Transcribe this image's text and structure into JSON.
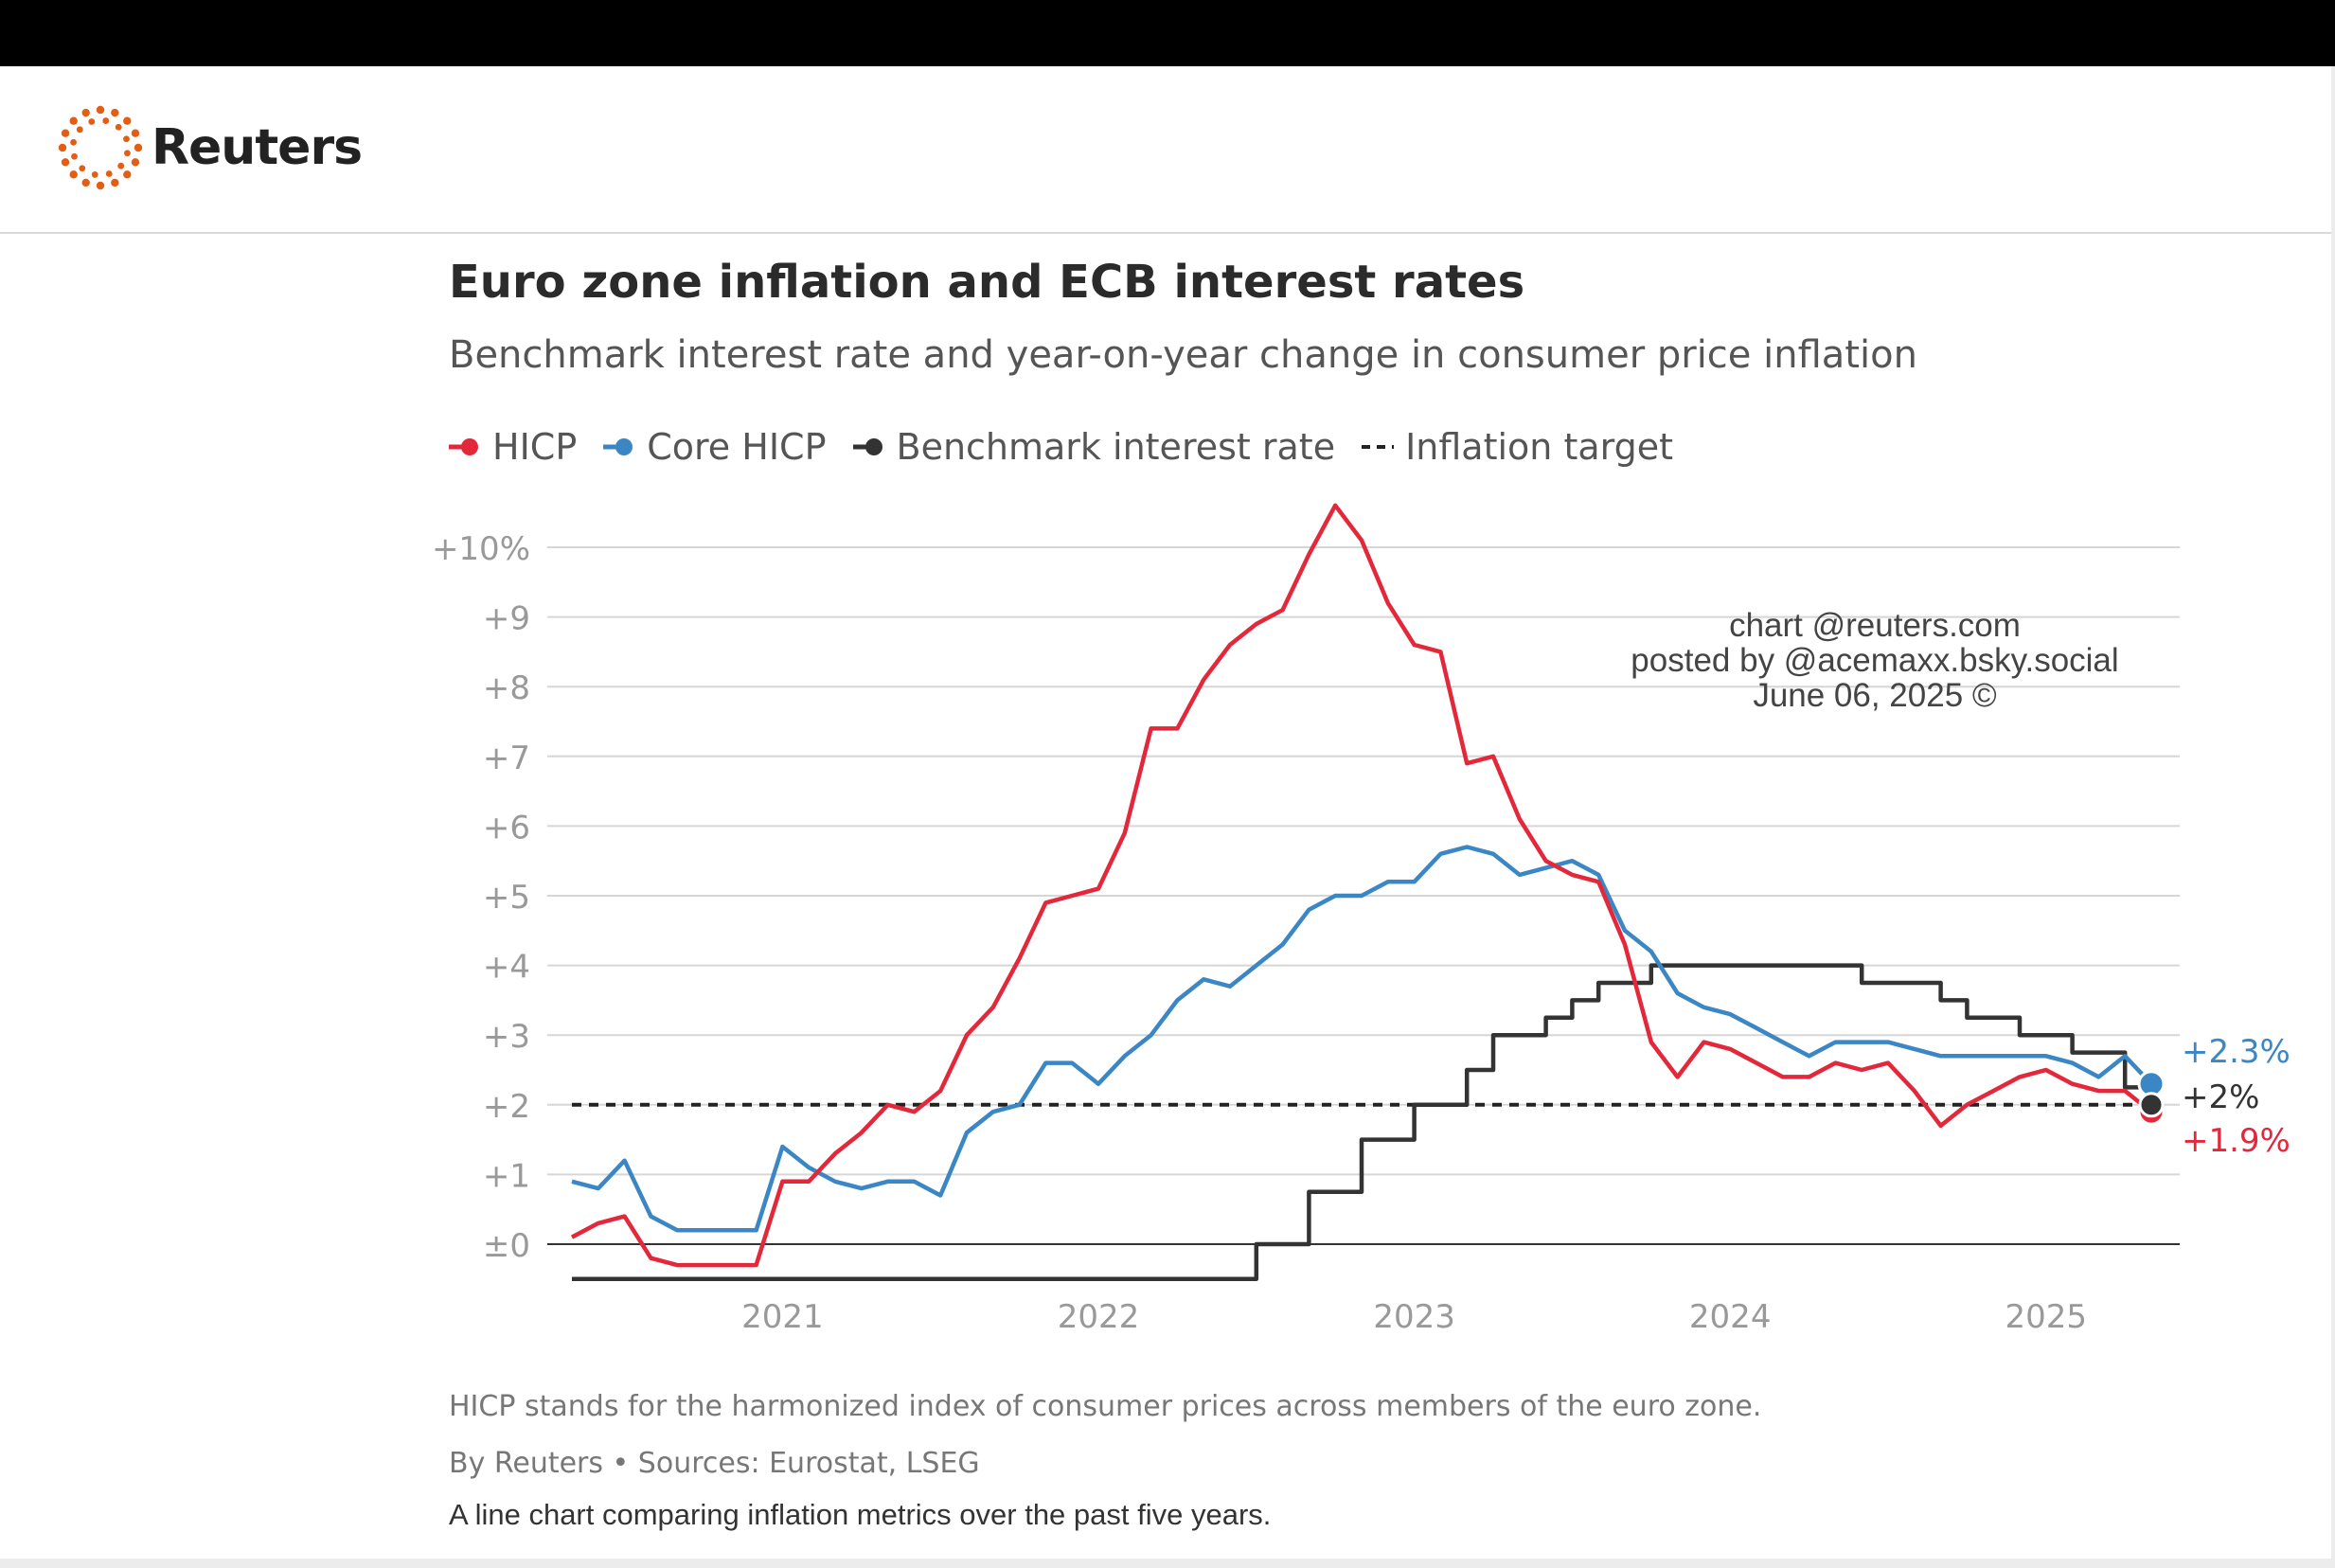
{
  "brand": {
    "name": "Reuters",
    "logo_color": "#e35d15"
  },
  "colors": {
    "hicp": "#e2283a",
    "core": "#3b86c4",
    "rate": "#333333",
    "target": "#222222",
    "grid": "#d6d6d6",
    "axis_text": "#999999"
  },
  "legend": [
    {
      "label": "HICP",
      "color": "#e2283a",
      "style": "dot-line"
    },
    {
      "label": "Core HICP",
      "color": "#3b86c4",
      "style": "dot-line"
    },
    {
      "label": "Benchmark interest rate",
      "color": "#333333",
      "style": "dot-line"
    },
    {
      "label": "Inflation target",
      "color": "#222222",
      "style": "dashed"
    }
  ],
  "watermark": {
    "line1": "chart @reuters.com",
    "line2": "posted by @acemaxx.bsky.social",
    "line3": "June 06, 2025 ©"
  },
  "footnote": "HICP stands for the harmonized index of consumer prices across members of the euro zone.",
  "credit": "By Reuters • Sources: Eurostat, LSEG",
  "caption": "A line chart comparing inflation metrics over the past five years.",
  "chart_data": {
    "type": "line",
    "title": "Euro zone inflation and ECB interest rates",
    "subtitle": "Benchmark interest rate and year-on-year change in consumer price inflation",
    "xlabel": "",
    "ylabel": "",
    "x_ticks": [
      "2021",
      "2022",
      "2023",
      "2024",
      "2025"
    ],
    "y_ticks": [
      "+10%",
      "+9",
      "+8",
      "+7",
      "+6",
      "+5",
      "+4",
      "+3",
      "+2",
      "+1",
      "±0"
    ],
    "ylim": [
      -0.5,
      10.6
    ],
    "xlim": [
      "2020-05",
      "2025-05"
    ],
    "grid": true,
    "legend_position": "top-left",
    "end_labels": [
      {
        "text": "+2.3%",
        "color": "#3b86c4",
        "value": 2.3
      },
      {
        "text": "+2%",
        "color": "#333333",
        "value": 2.0
      },
      {
        "text": "+1.9%",
        "color": "#e2283a",
        "value": 1.9
      }
    ],
    "series": [
      {
        "name": "HICP",
        "color": "#e2283a",
        "x": [
          "2020-05",
          "2020-06",
          "2020-07",
          "2020-08",
          "2020-09",
          "2020-10",
          "2020-11",
          "2020-12",
          "2021-01",
          "2021-02",
          "2021-03",
          "2021-04",
          "2021-05",
          "2021-06",
          "2021-07",
          "2021-08",
          "2021-09",
          "2021-10",
          "2021-11",
          "2021-12",
          "2022-01",
          "2022-02",
          "2022-03",
          "2022-04",
          "2022-05",
          "2022-06",
          "2022-07",
          "2022-08",
          "2022-09",
          "2022-10",
          "2022-11",
          "2022-12",
          "2023-01",
          "2023-02",
          "2023-03",
          "2023-04",
          "2023-05",
          "2023-06",
          "2023-07",
          "2023-08",
          "2023-09",
          "2023-10",
          "2023-11",
          "2023-12",
          "2024-01",
          "2024-02",
          "2024-03",
          "2024-04",
          "2024-05",
          "2024-06",
          "2024-07",
          "2024-08",
          "2024-09",
          "2024-10",
          "2024-11",
          "2024-12",
          "2025-01",
          "2025-02",
          "2025-03",
          "2025-04",
          "2025-05"
        ],
        "values": [
          0.1,
          0.3,
          0.4,
          -0.2,
          -0.3,
          -0.3,
          -0.3,
          -0.3,
          0.9,
          0.9,
          1.3,
          1.6,
          2.0,
          1.9,
          2.2,
          3.0,
          3.4,
          4.1,
          4.9,
          5.0,
          5.1,
          5.9,
          7.4,
          7.4,
          8.1,
          8.6,
          8.9,
          9.1,
          9.9,
          10.6,
          10.1,
          9.2,
          8.6,
          8.5,
          6.9,
          7.0,
          6.1,
          5.5,
          5.3,
          5.2,
          4.3,
          2.9,
          2.4,
          2.9,
          2.8,
          2.6,
          2.4,
          2.4,
          2.6,
          2.5,
          2.6,
          2.2,
          1.7,
          2.0,
          2.2,
          2.4,
          2.5,
          2.3,
          2.2,
          2.2,
          1.9
        ]
      },
      {
        "name": "Core HICP",
        "color": "#3b86c4",
        "x": [
          "2020-05",
          "2020-06",
          "2020-07",
          "2020-08",
          "2020-09",
          "2020-10",
          "2020-11",
          "2020-12",
          "2021-01",
          "2021-02",
          "2021-03",
          "2021-04",
          "2021-05",
          "2021-06",
          "2021-07",
          "2021-08",
          "2021-09",
          "2021-10",
          "2021-11",
          "2021-12",
          "2022-01",
          "2022-02",
          "2022-03",
          "2022-04",
          "2022-05",
          "2022-06",
          "2022-07",
          "2022-08",
          "2022-09",
          "2022-10",
          "2022-11",
          "2022-12",
          "2023-01",
          "2023-02",
          "2023-03",
          "2023-04",
          "2023-05",
          "2023-06",
          "2023-07",
          "2023-08",
          "2023-09",
          "2023-10",
          "2023-11",
          "2023-12",
          "2024-01",
          "2024-02",
          "2024-03",
          "2024-04",
          "2024-05",
          "2024-06",
          "2024-07",
          "2024-08",
          "2024-09",
          "2024-10",
          "2024-11",
          "2024-12",
          "2025-01",
          "2025-02",
          "2025-03",
          "2025-04",
          "2025-05"
        ],
        "values": [
          0.9,
          0.8,
          1.2,
          0.4,
          0.2,
          0.2,
          0.2,
          0.2,
          1.4,
          1.1,
          0.9,
          0.8,
          0.9,
          0.9,
          0.7,
          1.6,
          1.9,
          2.0,
          2.6,
          2.6,
          2.3,
          2.7,
          3.0,
          3.5,
          3.8,
          3.7,
          4.0,
          4.3,
          4.8,
          5.0,
          5.0,
          5.2,
          5.2,
          5.6,
          5.7,
          5.6,
          5.3,
          5.4,
          5.5,
          5.3,
          4.5,
          4.2,
          3.6,
          3.4,
          3.3,
          3.1,
          2.9,
          2.7,
          2.9,
          2.9,
          2.9,
          2.8,
          2.7,
          2.7,
          2.7,
          2.7,
          2.7,
          2.6,
          2.4,
          2.7,
          2.3
        ]
      },
      {
        "name": "Benchmark interest rate",
        "color": "#333333",
        "step": true,
        "x": [
          "2020-05",
          "2022-07",
          "2022-09",
          "2022-11",
          "2023-01",
          "2023-03",
          "2023-04",
          "2023-06",
          "2023-07",
          "2023-08",
          "2023-10",
          "2024-06",
          "2024-09",
          "2024-10",
          "2024-12",
          "2025-02",
          "2025-04",
          "2025-05"
        ],
        "values": [
          -0.5,
          0.0,
          0.75,
          1.5,
          2.0,
          2.5,
          3.0,
          3.25,
          3.5,
          3.75,
          4.0,
          3.75,
          3.5,
          3.25,
          3.0,
          2.75,
          2.25,
          2.0
        ]
      },
      {
        "name": "Inflation target",
        "color": "#222222",
        "dashed": true,
        "x": [
          "2020-05",
          "2025-05"
        ],
        "values": [
          2.0,
          2.0
        ]
      }
    ]
  }
}
